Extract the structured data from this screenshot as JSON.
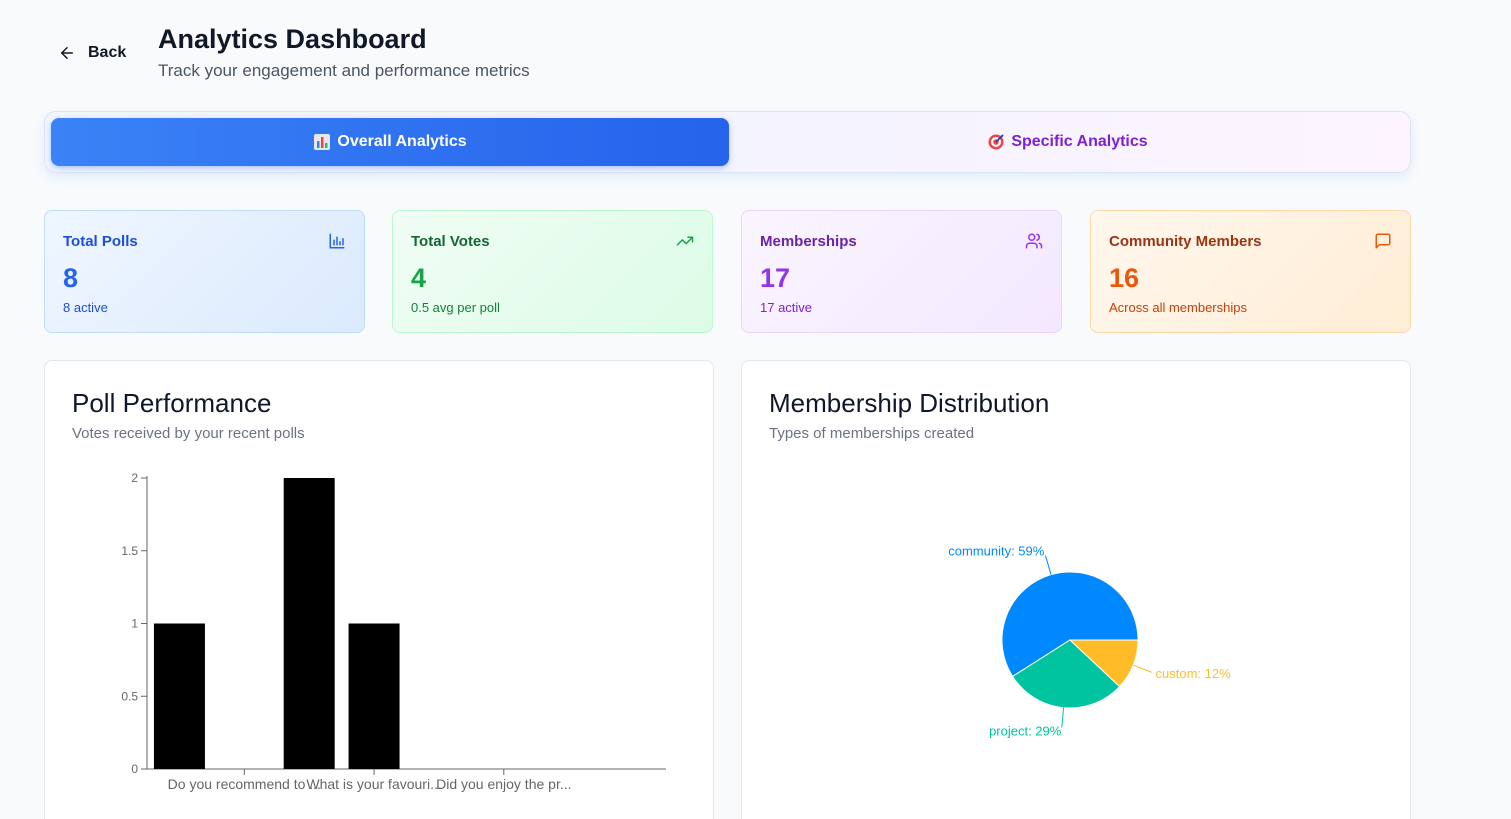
{
  "header": {
    "back_label": "Back",
    "title": "Analytics Dashboard",
    "subtitle": "Track your engagement and performance metrics"
  },
  "tabs": [
    {
      "label": "Overall Analytics",
      "icon": "bar-chart-emoji-icon",
      "active": true
    },
    {
      "label": "Specific Analytics",
      "icon": "target-emoji-icon",
      "active": false
    }
  ],
  "stats": {
    "polls": {
      "label": "Total Polls",
      "value": "8",
      "sub": "8 active",
      "icon": "bar-chart-icon",
      "color": "#2563eb",
      "value_color": "#2563eb"
    },
    "votes": {
      "label": "Total Votes",
      "value": "4",
      "sub": "0.5 avg per poll",
      "icon": "trending-up-icon",
      "color": "#15803d",
      "value_color": "#16a34a"
    },
    "memberships": {
      "label": "Memberships",
      "value": "17",
      "sub": "17 active",
      "icon": "users-icon",
      "color": "#7e22ce",
      "value_color": "#9333ea"
    },
    "community": {
      "label": "Community Members",
      "value": "16",
      "sub": "Across all memberships",
      "icon": "message-square-icon",
      "color": "#c2410c",
      "value_color": "#ea580c"
    }
  },
  "poll_panel": {
    "title": "Poll Performance",
    "subtitle": "Votes received by your recent polls"
  },
  "membership_panel": {
    "title": "Membership Distribution",
    "subtitle": "Types of memberships created"
  },
  "chart_data": [
    {
      "type": "bar",
      "categories": [
        "Do you recommend to ...",
        "What is your favouri...",
        "Did you enjoy the pr..."
      ],
      "category_positions": [
        1,
        3,
        5
      ],
      "x": [
        0.5,
        1.5,
        2.5,
        3.5,
        4.5,
        5.5
      ],
      "values": [
        1,
        0,
        2,
        1,
        0,
        0
      ],
      "yticks": [
        "0",
        "0.5",
        "1",
        "1.5",
        "2"
      ],
      "ylim": [
        0,
        2
      ],
      "bar_color": "#000000"
    },
    {
      "type": "pie",
      "slices": [
        {
          "label": "community",
          "percent": 59,
          "text": "community: 59%",
          "color": "#0088fe"
        },
        {
          "label": "project",
          "percent": 29,
          "text": "project: 29%",
          "color": "#00c49f"
        },
        {
          "label": "custom",
          "percent": 12,
          "text": "custom: 12%",
          "color": "#ffbb28"
        }
      ]
    }
  ]
}
